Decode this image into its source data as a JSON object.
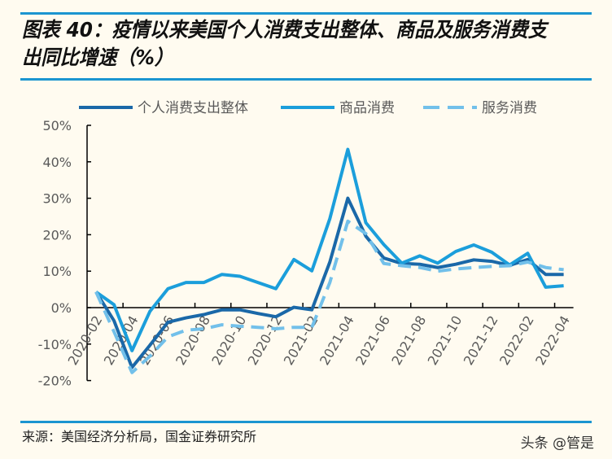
{
  "title": "图表 40：疫情以来美国个人消费支出整体、商品及服务消费支出同比增速（%）",
  "source": "来源：美国经济分析局，国金证券研究所",
  "watermark": "头条 @管是",
  "chart_data": {
    "type": "line",
    "title": "图表 40：疫情以来美国个人消费支出整体、商品及服务消费支出同比增速（%）",
    "x": [
      "2020-02",
      "2020-03",
      "2020-04",
      "2020-05",
      "2020-06",
      "2020-07",
      "2020-08",
      "2020-09",
      "2020-10",
      "2020-11",
      "2020-12",
      "2021-01",
      "2021-02",
      "2021-03",
      "2021-04",
      "2021-05",
      "2021-06",
      "2021-07",
      "2021-08",
      "2021-09",
      "2021-10",
      "2021-11",
      "2021-12",
      "2022-01",
      "2022-02",
      "2022-03",
      "2022-04"
    ],
    "x_tick_labels": [
      "2020-02",
      "2020-04",
      "2020-06",
      "2020-08",
      "2020-10",
      "2020-12",
      "2021-02",
      "2021-04",
      "2021-06",
      "2021-08",
      "2021-10",
      "2021-12",
      "2022-02",
      "2022-04"
    ],
    "y_tick_labels": [
      "50%",
      "40%",
      "30%",
      "20%",
      "10%",
      "0%",
      "-10%",
      "-20%"
    ],
    "ylim": [
      -20,
      50
    ],
    "yunit": "%",
    "grid": false,
    "legend_position": "top",
    "series": [
      {
        "name": "个人消费支出整体",
        "color": "#1a68a8",
        "dash": false,
        "values": [
          4.3,
          -3.6,
          -16.4,
          -10.3,
          -4.0,
          -2.8,
          -1.9,
          -0.6,
          -0.6,
          -1.6,
          -2.5,
          0.1,
          -0.6,
          12.5,
          30.0,
          19.6,
          13.6,
          12.1,
          11.9,
          11.0,
          11.9,
          13.1,
          12.7,
          11.6,
          13.2,
          9.1,
          9.1
        ]
      },
      {
        "name": "商品消费",
        "color": "#1b9edb",
        "dash": false,
        "values": [
          4.3,
          0.8,
          -11.8,
          -1.0,
          5.2,
          6.9,
          6.9,
          9.1,
          8.6,
          6.9,
          5.2,
          13.2,
          10.1,
          24.4,
          43.4,
          23.3,
          17.3,
          12.2,
          14.2,
          12.2,
          15.4,
          17.2,
          15.2,
          11.7,
          14.9,
          5.6,
          6.0
        ]
      },
      {
        "name": "服务消费",
        "color": "#72c0ea",
        "dash": true,
        "values": [
          4.3,
          -6.6,
          -17.8,
          -13.3,
          -8.0,
          -6.2,
          -5.8,
          -4.7,
          -5.1,
          -5.4,
          -5.8,
          -5.4,
          -5.4,
          6.9,
          23.7,
          20.3,
          12.1,
          11.5,
          11.0,
          10.0,
          10.6,
          11.0,
          11.3,
          11.5,
          12.5,
          11.0,
          10.4
        ]
      }
    ]
  }
}
